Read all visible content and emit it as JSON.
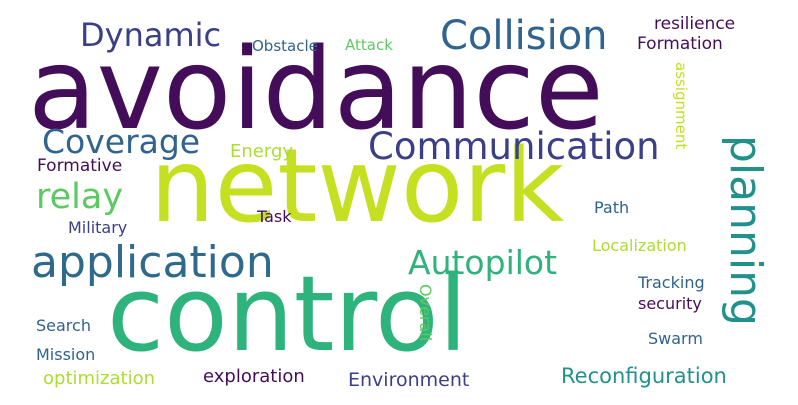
{
  "palette": {
    "background": "#ffffff",
    "dark_purple": "#440d5a",
    "indigo": "#3b3f86",
    "slate_blue": "#30638e",
    "steel_blue": "#2f6a8c",
    "teal": "#21918c",
    "sea_green": "#2eb37c",
    "green": "#5ec962",
    "yellow_green": "#addc30",
    "lime": "#c5e021"
  },
  "words": {
    "avoidance": {
      "text": "avoidance",
      "color": "#440d5a"
    },
    "network": {
      "text": "network",
      "color": "#c5e021"
    },
    "control": {
      "text": "control",
      "color": "#2eb37c"
    },
    "application": {
      "text": "application",
      "color": "#2f6a8c"
    },
    "planning": {
      "text": "planning",
      "color": "#21918c"
    },
    "collision": {
      "text": "Collision",
      "color": "#30638e"
    },
    "communication": {
      "text": "Communication",
      "color": "#3b3f86"
    },
    "coverage": {
      "text": "Coverage",
      "color": "#30638e"
    },
    "dynamic": {
      "text": "Dynamic",
      "color": "#3b3f86"
    },
    "relay": {
      "text": "relay",
      "color": "#5ec962"
    },
    "autopilot": {
      "text": "Autopilot",
      "color": "#2eb37c"
    },
    "reconfiguration": {
      "text": "Reconfiguration",
      "color": "#21918c"
    },
    "environment": {
      "text": "Environment",
      "color": "#3b3f86"
    },
    "exploration": {
      "text": "exploration",
      "color": "#440d5a"
    },
    "optimization": {
      "text": "optimization",
      "color": "#addc30"
    },
    "energy": {
      "text": "Energy",
      "color": "#addc30"
    },
    "formative": {
      "text": "Formative",
      "color": "#440d5a"
    },
    "formation": {
      "text": "Formation",
      "color": "#440d5a"
    },
    "resilience": {
      "text": "resilience",
      "color": "#440d5a"
    },
    "obstacle": {
      "text": "Obstacle",
      "color": "#30638e"
    },
    "attack": {
      "text": "Attack",
      "color": "#5ec962"
    },
    "assignment": {
      "text": "assignment",
      "color": "#c5e021"
    },
    "task": {
      "text": "Task",
      "color": "#440d5a"
    },
    "path": {
      "text": "Path",
      "color": "#30638e"
    },
    "military": {
      "text": "Military",
      "color": "#3b3f86"
    },
    "localization": {
      "text": "Localization",
      "color": "#addc30"
    },
    "tracking": {
      "text": "Tracking",
      "color": "#30638e"
    },
    "security": {
      "text": "security",
      "color": "#440d5a"
    },
    "overall": {
      "text": "Overall",
      "color": "#5ec962"
    },
    "search": {
      "text": "Search",
      "color": "#30638e"
    },
    "swarm": {
      "text": "Swarm",
      "color": "#30638e"
    },
    "mission": {
      "text": "Mission",
      "color": "#30638e"
    }
  }
}
